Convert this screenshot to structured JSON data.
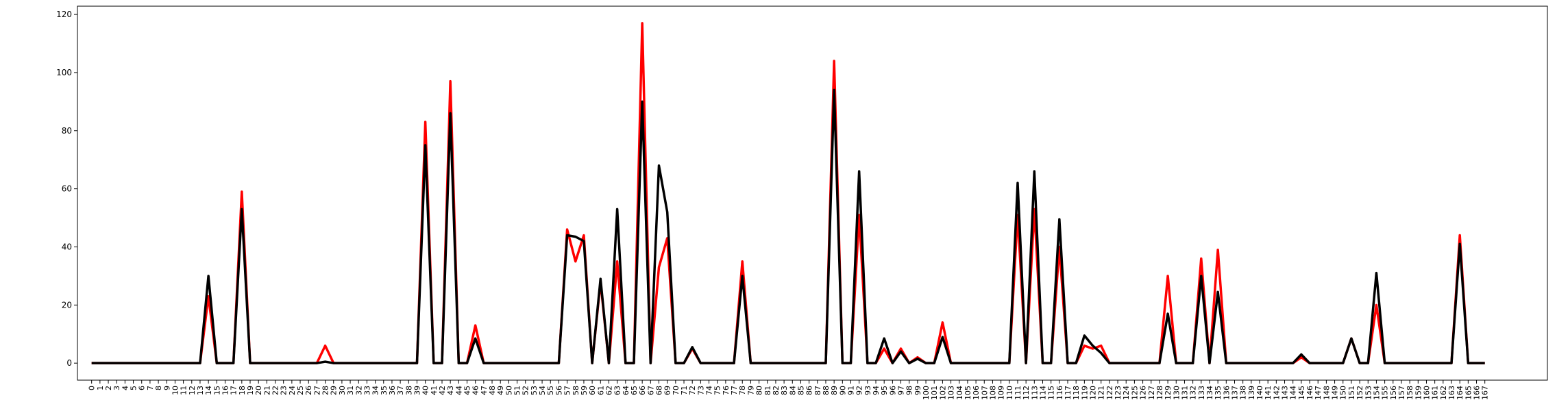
{
  "chart_data": {
    "type": "line",
    "x": [
      0,
      1,
      2,
      3,
      4,
      5,
      6,
      7,
      8,
      9,
      10,
      11,
      12,
      13,
      14,
      15,
      16,
      17,
      18,
      19,
      20,
      21,
      22,
      23,
      24,
      25,
      26,
      27,
      28,
      29,
      30,
      31,
      32,
      33,
      34,
      35,
      36,
      37,
      38,
      39,
      40,
      41,
      42,
      43,
      44,
      45,
      46,
      47,
      48,
      49,
      50,
      51,
      52,
      53,
      54,
      55,
      56,
      57,
      58,
      59,
      60,
      61,
      62,
      63,
      64,
      65,
      66,
      67,
      68,
      69,
      70,
      71,
      72,
      73,
      74,
      75,
      76,
      77,
      78,
      79,
      80,
      81,
      82,
      83,
      84,
      85,
      86,
      87,
      88,
      89,
      90,
      91,
      92,
      93,
      94,
      95,
      96,
      97,
      98,
      99,
      100,
      101,
      102,
      103,
      104,
      105,
      106,
      107,
      108,
      109,
      110,
      111,
      112,
      113,
      114,
      115,
      116,
      117,
      118,
      119,
      120,
      121,
      122,
      123,
      124,
      125,
      126,
      127,
      128,
      129,
      130,
      131,
      132,
      133,
      134,
      135,
      136,
      137,
      138,
      139,
      140,
      141,
      142,
      143,
      144,
      145,
      146,
      147,
      148,
      149,
      150,
      151,
      152,
      153,
      154,
      155,
      156,
      157,
      158,
      159,
      160,
      161,
      162,
      163,
      164,
      165,
      166,
      167
    ],
    "series": [
      {
        "color": "#ff0000",
        "values": [
          0,
          0,
          0,
          0,
          0,
          0,
          0,
          0,
          0,
          0,
          0,
          0,
          0,
          0,
          23,
          0,
          0,
          0,
          59,
          0,
          0,
          0,
          0,
          0,
          0,
          0,
          0,
          0,
          6,
          0,
          0,
          0,
          0,
          0,
          0,
          0,
          0,
          0,
          0,
          0,
          83,
          0,
          0,
          97,
          0,
          0,
          13,
          0,
          0,
          0,
          0,
          0,
          0,
          0,
          0,
          0,
          0,
          46,
          35,
          44,
          0,
          28,
          0,
          35,
          0,
          0,
          117,
          0,
          33,
          43,
          0,
          0,
          5,
          0,
          0,
          0,
          0,
          0,
          35,
          0,
          0,
          0,
          0,
          0,
          0,
          0,
          0,
          0,
          0,
          104,
          0,
          0,
          51,
          0,
          0,
          5,
          0,
          5,
          0,
          2,
          0,
          0,
          14,
          0,
          0,
          0,
          0,
          0,
          0,
          0,
          0,
          51,
          0,
          53,
          0,
          0,
          40,
          0,
          0,
          6,
          5,
          6,
          0,
          0,
          0,
          0,
          0,
          0,
          0,
          30,
          0,
          0,
          0,
          36,
          0,
          39,
          0,
          0,
          0,
          0,
          0,
          0,
          0,
          0,
          0,
          2,
          0,
          0,
          0,
          0,
          0,
          8.5,
          0,
          0,
          20,
          0,
          0,
          0,
          0,
          0,
          0,
          0,
          0,
          0,
          44,
          0,
          0,
          0
        ]
      },
      {
        "color": "#000000",
        "values": [
          0,
          0,
          0,
          0,
          0,
          0,
          0,
          0,
          0,
          0,
          0,
          0,
          0,
          0,
          30,
          0,
          0,
          0,
          53,
          0,
          0,
          0,
          0,
          0,
          0,
          0,
          0,
          0,
          0.5,
          0,
          0,
          0,
          0,
          0,
          0,
          0,
          0,
          0,
          0,
          0,
          75,
          0,
          0,
          86,
          0,
          0,
          8.5,
          0,
          0,
          0,
          0,
          0,
          0,
          0,
          0,
          0,
          0,
          44,
          43.5,
          42,
          0,
          29,
          0,
          53,
          0,
          0,
          90,
          0,
          68,
          52,
          0,
          0,
          5.5,
          0,
          0,
          0,
          0,
          0,
          30,
          0,
          0,
          0,
          0,
          0,
          0,
          0,
          0,
          0,
          0,
          94,
          0,
          0,
          66,
          0,
          0,
          8.5,
          0,
          4,
          0,
          1.5,
          0,
          0,
          9,
          0,
          0,
          0,
          0,
          0,
          0,
          0,
          0,
          62,
          0,
          66,
          0,
          0,
          49.5,
          0,
          0,
          9.5,
          6,
          3.5,
          0,
          0,
          0,
          0,
          0,
          0,
          0,
          17,
          0,
          0,
          0,
          30,
          0,
          24.5,
          0,
          0,
          0,
          0,
          0,
          0,
          0,
          0,
          0,
          3,
          0,
          0,
          0,
          0,
          0,
          8.5,
          0,
          0,
          31,
          0,
          0,
          0,
          0,
          0,
          0,
          0,
          0,
          0,
          41,
          0,
          0,
          0
        ]
      }
    ],
    "xlim": [
      -1.7,
      174.5
    ],
    "ylim": [
      -5.85,
      122.85
    ],
    "yticks": [
      0,
      20,
      40,
      60,
      80,
      100,
      120
    ]
  }
}
